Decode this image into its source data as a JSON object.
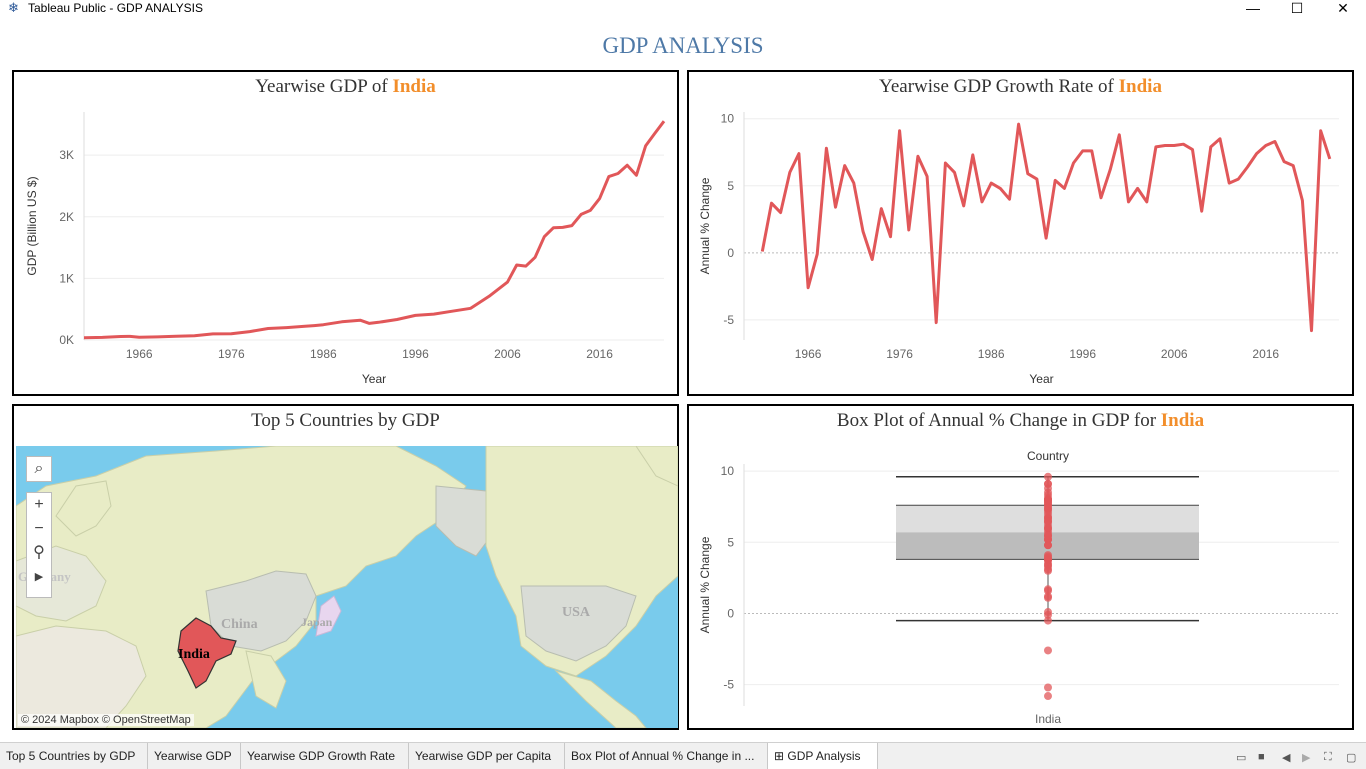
{
  "window": {
    "title": "Tableau Public - GDP ANALYSIS",
    "icon": "tableau-snowflake-icon"
  },
  "dashboard": {
    "title": "GDP ANALYSIS",
    "accent": "#f28e2b",
    "line_color": "#e15759"
  },
  "panels": {
    "gdp": {
      "title_prefix": "Yearwise GDP of",
      "title_highlight": "India"
    },
    "growth": {
      "title_prefix": "Yearwise GDP Growth Rate of",
      "title_highlight": "India"
    },
    "map": {
      "title": "Top 5 Countries by GDP",
      "attribution": "© 2024 Mapbox © OpenStreetMap",
      "labels": [
        "China",
        "Japan",
        "India",
        "USA",
        "Germany"
      ]
    },
    "box": {
      "title_prefix": "Box Plot of Annual % Change in GDP for",
      "title_highlight": "India",
      "column_header": "Country",
      "category": "India"
    }
  },
  "chart_data": [
    {
      "type": "line",
      "xlabel": "Year",
      "ylabel": "GDP (Billion US $)",
      "xticks": [
        "1966",
        "1976",
        "1986",
        "1996",
        "2006",
        "2016"
      ],
      "yticks": [
        "0K",
        "1K",
        "2K",
        "3K"
      ],
      "x": [
        1960,
        1962,
        1964,
        1965,
        1966,
        1968,
        1970,
        1972,
        1974,
        1976,
        1978,
        1980,
        1982,
        1984,
        1985,
        1986,
        1988,
        1990,
        1991,
        1992,
        1994,
        1996,
        1998,
        2000,
        2002,
        2004,
        2006,
        2007,
        2008,
        2009,
        2010,
        2011,
        2012,
        2013,
        2014,
        2015,
        2016,
        2017,
        2018,
        2019,
        2020,
        2021,
        2022,
        2023
      ],
      "series": [
        {
          "values": [
            37,
            42,
            56,
            59,
            45,
            50,
            62,
            70,
            99,
            102,
            136,
            186,
            201,
            222,
            233,
            248,
            296,
            321,
            270,
            288,
            333,
            399,
            421,
            468,
            514,
            709,
            940,
            1217,
            1199,
            1342,
            1676,
            1823,
            1828,
            1857,
            2039,
            2103,
            2295,
            2651,
            2702,
            2836,
            2672,
            3150,
            3353,
            3550
          ]
        }
      ],
      "xlim": [
        1960,
        2023
      ],
      "ylim": [
        0,
        3700
      ]
    },
    {
      "type": "line",
      "xlabel": "Year",
      "ylabel": "Annual % Change",
      "xticks": [
        "1966",
        "1976",
        "1986",
        "1996",
        "2006",
        "2016"
      ],
      "yticks": [
        "-5",
        "0",
        "5",
        "10"
      ],
      "x": [
        1961,
        1962,
        1963,
        1964,
        1965,
        1966,
        1967,
        1968,
        1969,
        1970,
        1971,
        1972,
        1973,
        1974,
        1975,
        1976,
        1977,
        1978,
        1979,
        1980,
        1981,
        1982,
        1983,
        1984,
        1985,
        1986,
        1987,
        1988,
        1989,
        1990,
        1991,
        1992,
        1993,
        1994,
        1995,
        1996,
        1997,
        1998,
        1999,
        2000,
        2001,
        2002,
        2003,
        2004,
        2005,
        2006,
        2007,
        2008,
        2009,
        2010,
        2011,
        2012,
        2013,
        2014,
        2015,
        2016,
        2017,
        2018,
        2019,
        2020,
        2021,
        2022,
        2023
      ],
      "series": [
        {
          "values": [
            0.1,
            3.7,
            3.0,
            6.0,
            7.4,
            -2.6,
            -0.1,
            7.8,
            3.4,
            6.5,
            5.2,
            1.6,
            -0.5,
            3.3,
            1.2,
            9.1,
            1.7,
            7.2,
            5.7,
            -5.2,
            6.7,
            6.0,
            3.5,
            7.3,
            3.8,
            5.2,
            4.8,
            4.0,
            9.6,
            5.9,
            5.5,
            1.1,
            5.4,
            4.8,
            6.7,
            7.6,
            7.6,
            4.1,
            6.2,
            8.8,
            3.8,
            4.8,
            3.8,
            7.9,
            8.0,
            8.0,
            8.1,
            7.7,
            3.1,
            7.9,
            8.5,
            5.2,
            5.5,
            6.4,
            7.4,
            8.0,
            8.3,
            6.8,
            6.5,
            3.9,
            -5.8,
            9.1,
            7.0
          ]
        }
      ],
      "xlim": [
        1959,
        2024
      ],
      "ylim": [
        -6.5,
        10.5
      ]
    },
    {
      "type": "box",
      "xlabel": "India",
      "ylabel": "Annual % Change",
      "yticks": [
        "-5",
        "0",
        "5",
        "10"
      ],
      "whisker_low": -0.5,
      "q1": 3.8,
      "median": 5.7,
      "q3": 7.6,
      "whisker_high": 9.6,
      "points": [
        0.1,
        3.7,
        3.0,
        6.0,
        7.4,
        -2.6,
        -0.1,
        7.8,
        3.4,
        6.5,
        5.2,
        1.6,
        -0.5,
        3.3,
        1.2,
        9.1,
        1.7,
        7.2,
        5.7,
        -5.2,
        6.7,
        6.0,
        3.5,
        7.3,
        3.8,
        5.2,
        4.8,
        4.0,
        9.6,
        5.9,
        5.5,
        1.1,
        5.4,
        4.8,
        6.7,
        7.6,
        7.6,
        4.1,
        6.2,
        8.8,
        3.8,
        4.8,
        3.8,
        7.9,
        8.0,
        8.0,
        8.1,
        7.7,
        3.1,
        7.9,
        8.5,
        5.2,
        5.5,
        6.4,
        7.4,
        8.0,
        8.3,
        6.8,
        6.5,
        3.9,
        -5.8,
        9.1,
        7.0
      ],
      "ylim": [
        -6.5,
        10.5
      ]
    }
  ],
  "tabs": [
    {
      "label": "Top 5 Countries by GDP"
    },
    {
      "label": "Yearwise GDP"
    },
    {
      "label": "Yearwise GDP Growth Rate"
    },
    {
      "label": "Yearwise GDP per Capita"
    },
    {
      "label": "Box Plot of Annual % Change in ..."
    },
    {
      "label": "GDP Analysis",
      "icon": "grid-icon",
      "active": true
    }
  ]
}
